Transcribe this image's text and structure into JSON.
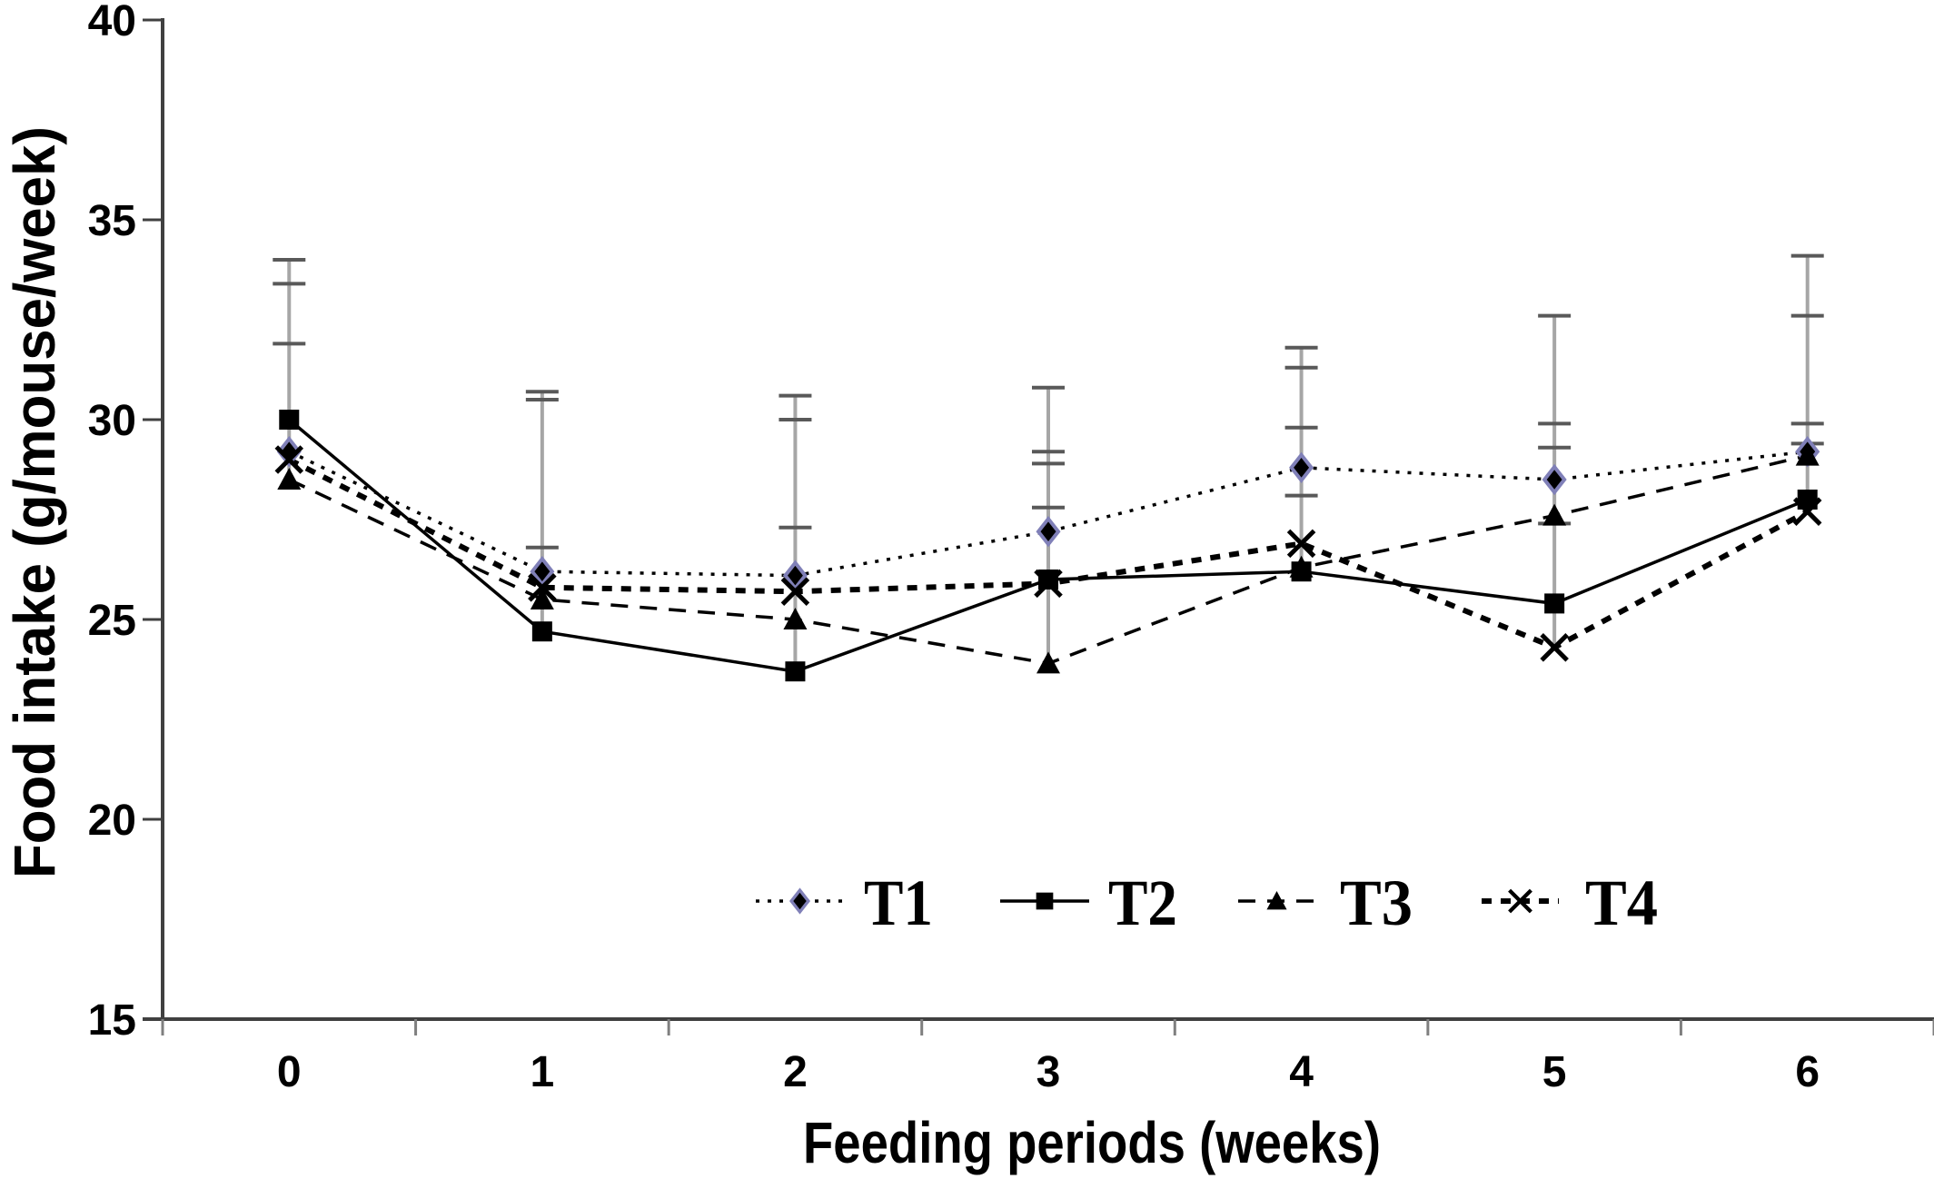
{
  "chart_data": {
    "type": "line",
    "title": "",
    "xlabel": "Feeding periods (weeks)",
    "ylabel": "Food intake  (g/mouse/week)",
    "x": [
      0,
      1,
      2,
      3,
      4,
      5,
      6
    ],
    "xlabels": [
      "0",
      "1",
      "2",
      "3",
      "4",
      "5",
      "6"
    ],
    "ylim": [
      15,
      40
    ],
    "yticks": [
      15,
      20,
      25,
      30,
      35,
      40
    ],
    "ytick_labels": [
      "15",
      "20",
      "25",
      "30",
      "35",
      "40"
    ],
    "grid": false,
    "legend_position": "inside-bottom-center",
    "series": [
      {
        "name": "T1",
        "marker": "diamond",
        "line": "dotted",
        "values": [
          29.2,
          26.2,
          26.1,
          27.2,
          28.8,
          28.5,
          29.2
        ]
      },
      {
        "name": "T2",
        "marker": "square",
        "line": "solid",
        "values": [
          30.0,
          24.7,
          23.7,
          26.0,
          26.2,
          25.4,
          28.0
        ]
      },
      {
        "name": "T3",
        "marker": "triangle",
        "line": "dashed",
        "values": [
          28.5,
          25.5,
          25.0,
          23.9,
          26.3,
          27.6,
          29.1
        ]
      },
      {
        "name": "T4",
        "marker": "x",
        "line": "bold-dashed",
        "values": [
          29.0,
          25.8,
          25.7,
          25.9,
          26.9,
          24.3,
          27.7
        ]
      }
    ],
    "error_bars": [
      {
        "x": 0,
        "low": 28.5,
        "caps": [
          31.9,
          33.4,
          34.0
        ]
      },
      {
        "x": 1,
        "low": 24.7,
        "caps": [
          26.8,
          30.5,
          30.7
        ]
      },
      {
        "x": 2,
        "low": 23.7,
        "caps": [
          27.3,
          30.0,
          30.6
        ]
      },
      {
        "x": 3,
        "low": 23.9,
        "caps": [
          27.8,
          28.9,
          29.2,
          30.8
        ]
      },
      {
        "x": 4,
        "low": 26.2,
        "caps": [
          28.1,
          29.8,
          31.3,
          31.8
        ]
      },
      {
        "x": 5,
        "low": 24.3,
        "caps": [
          27.4,
          29.3,
          29.9,
          32.6
        ]
      },
      {
        "x": 6,
        "low": 27.7,
        "caps": [
          29.4,
          29.9,
          32.6,
          34.1
        ]
      }
    ],
    "colors": {
      "series": "#000000",
      "diamond_outline": "#8080b8",
      "error_line": "#a6a6a6",
      "error_cap": "#595959",
      "axis": "#404040",
      "xtick": "#7f7f7f"
    }
  }
}
